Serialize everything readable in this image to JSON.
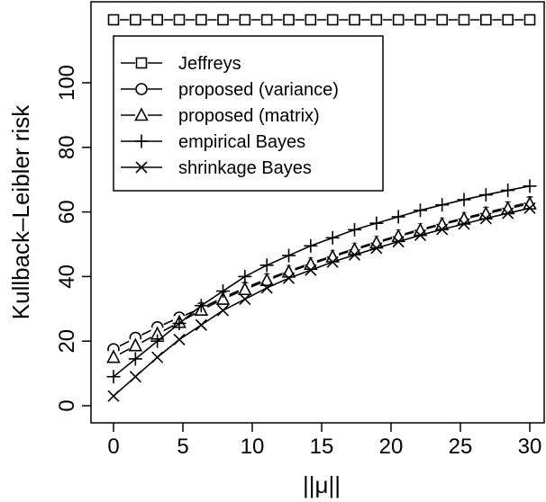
{
  "chart_data": {
    "type": "line",
    "title": "",
    "xlabel": "||μ||",
    "ylabel": "Kullback–Leibler risk",
    "xlim": [
      0,
      30
    ],
    "ylim": [
      0,
      100
    ],
    "xticks": [
      0,
      5,
      10,
      15,
      20,
      25,
      30
    ],
    "yticks": [
      0,
      20,
      40,
      60,
      80,
      100
    ],
    "grid": false,
    "legend_position": "top-left",
    "x": [
      0,
      1.58,
      3.16,
      4.74,
      6.32,
      7.89,
      9.47,
      11.05,
      12.63,
      14.21,
      15.79,
      17.37,
      18.95,
      20.53,
      22.11,
      23.68,
      25.26,
      26.84,
      28.42,
      30
    ],
    "series": [
      {
        "name": "Jeffreys",
        "marker": "square",
        "values": [
          120,
          120,
          120,
          120,
          120,
          120,
          120,
          120,
          120,
          120,
          120,
          120,
          120,
          120,
          120,
          120,
          120,
          120,
          120,
          120
        ]
      },
      {
        "name": "proposed (variance)",
        "marker": "circle",
        "values": [
          17.5,
          21.0,
          24.3,
          27.3,
          30.2,
          33.5,
          36.5,
          39.2,
          41.7,
          44.1,
          46.4,
          48.6,
          50.7,
          52.7,
          54.6,
          56.4,
          58.1,
          59.8,
          61.4,
          63.0
        ]
      },
      {
        "name": "proposed (matrix)",
        "marker": "triangle",
        "values": [
          15.0,
          18.6,
          22.2,
          25.8,
          29.6,
          33.0,
          36.0,
          38.8,
          41.4,
          43.8,
          46.1,
          48.3,
          50.4,
          52.4,
          54.3,
          56.1,
          57.8,
          59.4,
          61.0,
          62.5
        ]
      },
      {
        "name": "empirical Bayes",
        "marker": "plus",
        "values": [
          9.0,
          14.5,
          20.0,
          25.5,
          31.0,
          35.5,
          40.0,
          43.5,
          46.5,
          49.5,
          52.0,
          54.5,
          56.5,
          58.5,
          60.5,
          62.2,
          63.8,
          65.3,
          66.7,
          68.0
        ]
      },
      {
        "name": "shrinkage Bayes",
        "marker": "cross",
        "values": [
          3.0,
          9.0,
          15.0,
          20.5,
          25.0,
          29.5,
          33.0,
          36.5,
          39.5,
          42.0,
          44.5,
          46.7,
          48.8,
          50.8,
          52.8,
          54.6,
          56.3,
          58.0,
          59.6,
          61.2
        ]
      }
    ]
  }
}
